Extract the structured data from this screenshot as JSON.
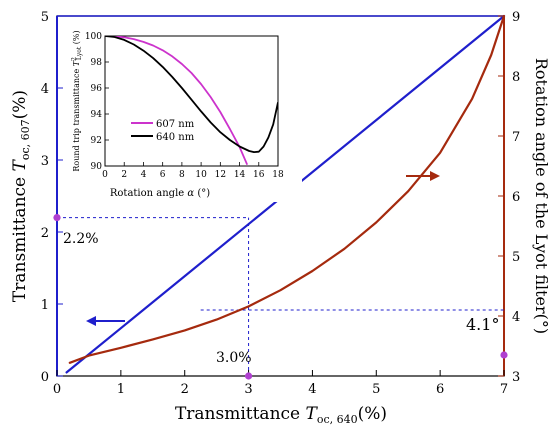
{
  "chart_data": [
    {
      "type": "line",
      "xlabel": {
        "prefix": "Transmittance ",
        "symbol": "T",
        "sub": "oc, 640",
        "suffix": "(%)"
      },
      "ylabel_left": {
        "prefix": "Transmittance ",
        "symbol": "T",
        "sub": "oc, 607",
        "suffix": "(%)"
      },
      "ylabel_right": "Rotation angle of the Lyot filter(°)",
      "xlim": [
        0,
        7
      ],
      "ylim_left": [
        0,
        5
      ],
      "ylim_right": [
        3,
        9
      ],
      "x_ticks": [
        "0",
        "1",
        "2",
        "3",
        "4",
        "5",
        "6",
        "7"
      ],
      "y_ticks_left": [
        "0",
        "1",
        "2",
        "3",
        "4",
        "5"
      ],
      "y_ticks_right": [
        "3",
        "4",
        "5",
        "6",
        "7",
        "8",
        "9"
      ],
      "colors": {
        "left": "#1f1fcc",
        "right": "#a52a0e",
        "marker": "#b040d0",
        "axis": "#000000"
      },
      "series": [
        {
          "axis": "left",
          "color": "#1f1fcc",
          "points": [
            [
              0.15,
              0.05
            ],
            [
              7.0,
              5.0
            ]
          ]
        },
        {
          "axis": "right",
          "color": "#a52a0e",
          "points": [
            [
              0.2,
              3.22
            ],
            [
              0.5,
              3.34
            ],
            [
              1.0,
              3.47
            ],
            [
              1.5,
              3.61
            ],
            [
              2.0,
              3.76
            ],
            [
              2.5,
              3.94
            ],
            [
              3.0,
              4.16
            ],
            [
              3.5,
              4.43
            ],
            [
              4.0,
              4.75
            ],
            [
              4.5,
              5.12
            ],
            [
              5.0,
              5.56
            ],
            [
              5.5,
              6.08
            ],
            [
              6.0,
              6.72
            ],
            [
              6.5,
              7.62
            ],
            [
              6.8,
              8.35
            ],
            [
              7.0,
              9.0
            ]
          ]
        }
      ],
      "guides": [
        {
          "axis": "left",
          "from": [
            0,
            2.2
          ],
          "to": [
            3.0,
            2.2
          ]
        },
        {
          "axis": "left",
          "from": [
            3.0,
            0
          ],
          "to": [
            3.0,
            2.2
          ]
        },
        {
          "axis": "right",
          "from": [
            2.25,
            4.1
          ],
          "to": [
            7.0,
            4.1
          ]
        }
      ],
      "markers": [
        {
          "axis": "left",
          "x": 0,
          "y": 2.2
        },
        {
          "axis": "left",
          "x": 3.0,
          "y": 0
        },
        {
          "axis": "right",
          "x": 7.0,
          "y": 3.35
        }
      ],
      "annotations": [
        {
          "text": "2.2%"
        },
        {
          "text": "3.0%"
        },
        {
          "text": "4.1°"
        }
      ]
    },
    {
      "type": "line",
      "xlabel": {
        "prefix": "Rotation angle ",
        "symbol": "α",
        "suffix": " (°)"
      },
      "ylabel": {
        "prefix": "Round trip transmittance ",
        "symbol": "T",
        "sup": "2",
        "sub": "Lyot",
        "suffix": " (%)"
      },
      "xlim": [
        0,
        18
      ],
      "ylim": [
        90,
        100
      ],
      "x_ticks": [
        "0",
        "2",
        "4",
        "6",
        "8",
        "10",
        "12",
        "14",
        "16",
        "18"
      ],
      "y_ticks": [
        "90",
        "92",
        "94",
        "96",
        "98",
        "100"
      ],
      "legend_position": "center-left",
      "series": [
        {
          "name": "607 nm",
          "color": "#cc33cc",
          "points": [
            [
              0,
              100
            ],
            [
              1,
              99.98
            ],
            [
              2,
              99.9
            ],
            [
              3,
              99.76
            ],
            [
              4,
              99.55
            ],
            [
              5,
              99.27
            ],
            [
              6,
              98.9
            ],
            [
              7,
              98.43
            ],
            [
              8,
              97.85
            ],
            [
              9,
              97.15
            ],
            [
              10,
              96.3
            ],
            [
              11,
              95.3
            ],
            [
              12,
              94.15
            ],
            [
              13,
              92.85
            ],
            [
              14,
              91.45
            ],
            [
              14.8,
              90.1
            ]
          ]
        },
        {
          "name": "640 nm",
          "color": "#000000",
          "points": [
            [
              0,
              100
            ],
            [
              1,
              99.92
            ],
            [
              2,
              99.7
            ],
            [
              3,
              99.35
            ],
            [
              4,
              98.88
            ],
            [
              5,
              98.3
            ],
            [
              6,
              97.62
            ],
            [
              7,
              96.85
            ],
            [
              8,
              96.0
            ],
            [
              9,
              95.1
            ],
            [
              10,
              94.2
            ],
            [
              11,
              93.35
            ],
            [
              12,
              92.6
            ],
            [
              13,
              92.0
            ],
            [
              14,
              91.5
            ],
            [
              15,
              91.15
            ],
            [
              15.5,
              91.07
            ],
            [
              16,
              91.1
            ],
            [
              16.5,
              91.5
            ],
            [
              17,
              92.2
            ],
            [
              17.5,
              93.2
            ],
            [
              18,
              94.9
            ]
          ]
        }
      ]
    }
  ]
}
